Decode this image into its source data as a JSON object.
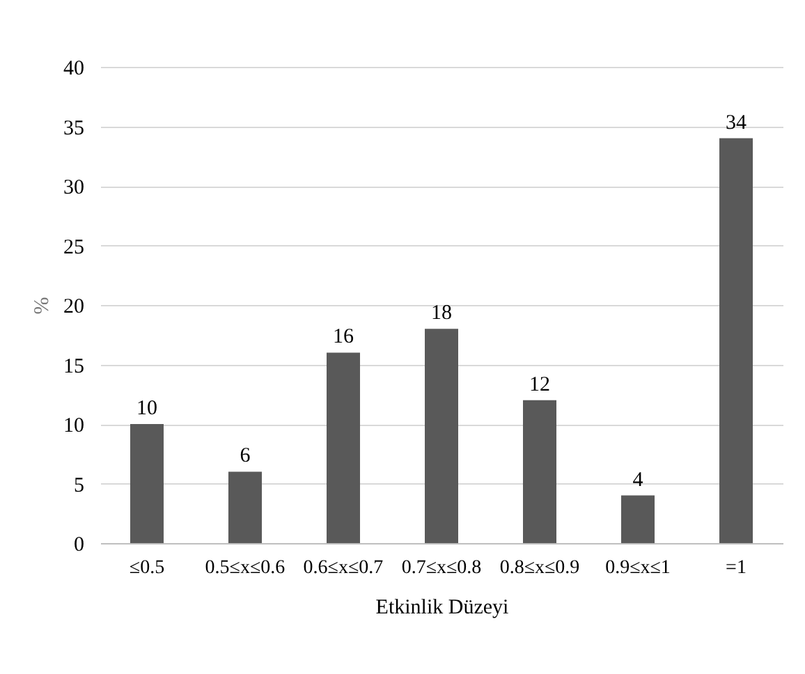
{
  "chart_data": {
    "type": "bar",
    "xlabel": "Etkinlik Düzeyi",
    "ylabel": "%",
    "categories": [
      "≤0.5",
      "0.5≤x≤0.6",
      "0.6≤x≤0.7",
      "0.7≤x≤0.8",
      "0.8≤x≤0.9",
      "0.9≤x≤1",
      "=1"
    ],
    "values": [
      10,
      6,
      16,
      18,
      12,
      4,
      34
    ],
    "color": "#595959",
    "ylim": [
      0,
      40
    ],
    "yticks": [
      0,
      5,
      10,
      15,
      20,
      25,
      30,
      35,
      40
    ],
    "grid": "y",
    "data_labels": true
  }
}
